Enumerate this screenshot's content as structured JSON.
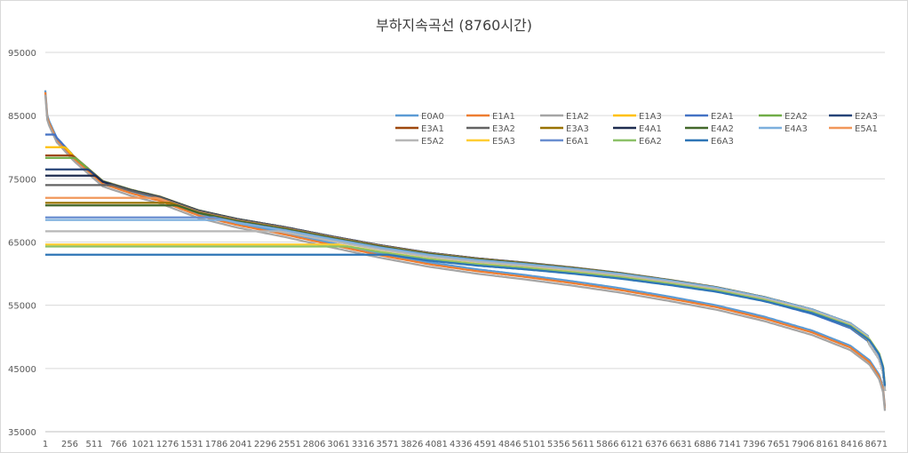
{
  "chart_data": {
    "type": "line",
    "title": "부하지속곡선 (8760시간)",
    "ylim": [
      35000,
      95000
    ],
    "y_ticks": [
      35000,
      45000,
      55000,
      65000,
      75000,
      85000,
      95000
    ],
    "x_range": [
      1,
      8760
    ],
    "x_tick_labels": [
      "1",
      "256",
      "511",
      "766",
      "1021",
      "1276",
      "1531",
      "1786",
      "2041",
      "2296",
      "2551",
      "2806",
      "3061",
      "3316",
      "3571",
      "3826",
      "4081",
      "4336",
      "4591",
      "4846",
      "5101",
      "5356",
      "5611",
      "5866",
      "6121",
      "6376",
      "6631",
      "6886",
      "7141",
      "7396",
      "7651",
      "7906",
      "8161",
      "8416",
      "8671"
    ],
    "grid": true,
    "legend_position": "top-right inside plot",
    "series": [
      {
        "name": "E0A0",
        "color": "#5b9bd5",
        "cap": null
      },
      {
        "name": "E1A1",
        "color": "#ed7d31",
        "cap": null
      },
      {
        "name": "E1A2",
        "color": "#a5a5a5",
        "cap": null
      },
      {
        "name": "E1A3",
        "color": "#ffc000",
        "cap": 80000
      },
      {
        "name": "E2A1",
        "color": "#4472c4",
        "cap": 82000
      },
      {
        "name": "E2A2",
        "color": "#70ad47",
        "cap": 78300
      },
      {
        "name": "E2A3",
        "color": "#264478",
        "cap": 76500
      },
      {
        "name": "E3A1",
        "color": "#9e480e",
        "cap": 78700
      },
      {
        "name": "E3A2",
        "color": "#636363",
        "cap": 74000
      },
      {
        "name": "E3A3",
        "color": "#997300",
        "cap": 71200
      },
      {
        "name": "E4A1",
        "color": "#1f2d50",
        "cap": 75500
      },
      {
        "name": "E4A2",
        "color": "#43682b",
        "cap": 70800
      },
      {
        "name": "E4A3",
        "color": "#7cafdd",
        "cap": 68500
      },
      {
        "name": "E5A1",
        "color": "#f1975a",
        "cap": 72000
      },
      {
        "name": "E5A2",
        "color": "#b7b7b7",
        "cap": 66700
      },
      {
        "name": "E5A3",
        "color": "#ffcd33",
        "cap": 64600
      },
      {
        "name": "E6A1",
        "color": "#698ed0",
        "cap": 68900
      },
      {
        "name": "E6A2",
        "color": "#8cc168",
        "cap": 64300
      },
      {
        "name": "E6A3",
        "color": "#2e75b6",
        "cap": 63000
      }
    ]
  }
}
